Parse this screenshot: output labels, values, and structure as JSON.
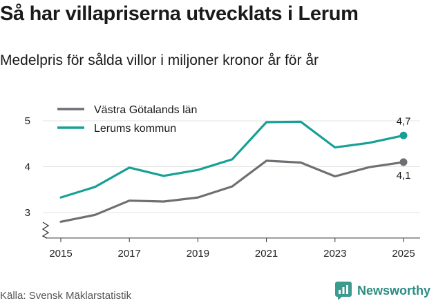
{
  "title": "Så har villapriserna utvecklats i Lerum",
  "subtitle": "Medelpris för sålda villor i miljoner kronor år för år",
  "source": "Källa: Svensk Mäklarstatistik",
  "brand": "Newsworthy",
  "chart_data": {
    "type": "line",
    "x": [
      2015,
      2016,
      2017,
      2018,
      2019,
      2020,
      2021,
      2022,
      2023,
      2024,
      2025
    ],
    "x_ticks": [
      "2015",
      "2017",
      "2019",
      "2021",
      "2023",
      "2025"
    ],
    "y_ticks": [
      "3",
      "4",
      "5"
    ],
    "ylim": [
      2.4,
      5.3
    ],
    "xlabel": "",
    "ylabel": "",
    "legend_position": "top-left",
    "series": [
      {
        "name": "Västra Götalands län",
        "color": "#6f6e73",
        "values": [
          2.8,
          2.95,
          3.26,
          3.24,
          3.33,
          3.57,
          4.13,
          4.09,
          3.79,
          3.99,
          4.1
        ],
        "end_label": "4,1"
      },
      {
        "name": "Lerums kommun",
        "color": "#16a096",
        "values": [
          3.33,
          3.56,
          3.98,
          3.8,
          3.93,
          4.16,
          4.97,
          4.98,
          4.42,
          4.52,
          4.68
        ],
        "end_label": "4,7"
      }
    ]
  }
}
